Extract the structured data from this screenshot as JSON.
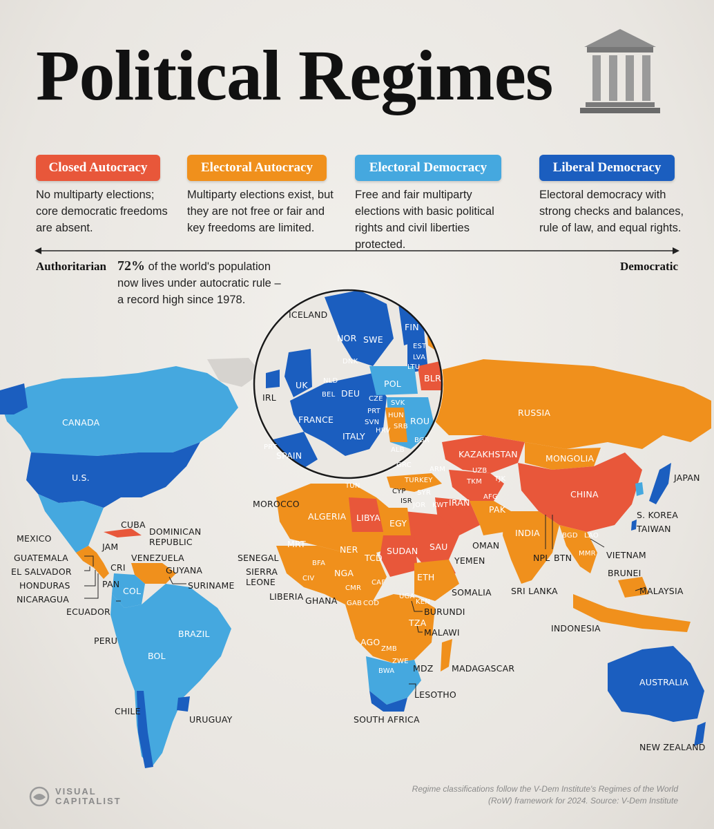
{
  "title": "Political Regimes",
  "colors": {
    "closed_autocracy": "#e8573a",
    "electoral_autocracy": "#f0901c",
    "electoral_democracy": "#45a8df",
    "liberal_democracy": "#1b5ebf",
    "no_data": "#d6d3cf"
  },
  "legend": [
    {
      "label": "Closed Autocracy",
      "desc": "No multiparty elections; core democratic freedoms are absent."
    },
    {
      "label": "Electoral Autocracy",
      "desc": "Multiparty elections exist, but they are not free or fair and key freedoms are limited."
    },
    {
      "label": "Electoral Democracy",
      "desc": "Free and fair multiparty elections with basic political rights and civil liberties protected."
    },
    {
      "label": "Liberal Democracy",
      "desc": "Electoral democracy with strong checks and balances, rule of law, and equal rights."
    }
  ],
  "scale": {
    "left": "Authoritarian",
    "right": "Democratic"
  },
  "stat": {
    "value": "72%",
    "text": " of the world's population now lives under autocratic rule – a record high since 1978."
  },
  "labels": {
    "canada": "CANADA",
    "us": "U.S.",
    "mexico": "MEXICO",
    "cuba": "CUBA",
    "jam": "JAM",
    "dominican": "DOMINICAN REPUBLIC",
    "guatemala": "GUATEMALA",
    "el_salvador": "EL SALVADOR",
    "honduras": "HONDURAS",
    "nicaragua": "NICARAGUA",
    "cri": "CRI",
    "pan": "PAN",
    "venezuela": "VENEZUELA",
    "guyana": "GUYANA",
    "suriname": "SURINAME",
    "col": "COL",
    "ecuador": "ECUADOR",
    "peru": "PERU",
    "brazil": "BRAZIL",
    "bol": "BOL",
    "chile": "CHILE",
    "uruguay": "URUGUAY",
    "iceland": "ICELAND",
    "nor": "NOR",
    "swe": "SWE",
    "fin": "FIN",
    "est": "EST",
    "lva": "LVA",
    "ltu": "LTU",
    "dnk": "DNK",
    "blr": "BLR",
    "irl": "IRL",
    "uk": "UK",
    "nld": "NLD",
    "bel": "BEL",
    "deu": "DEU",
    "pol": "POL",
    "cze": "CZE",
    "svk": "SVK",
    "france": "FRANCE",
    "prt_at": "PRT",
    "hun": "HUN",
    "rou": "ROU",
    "svn": "SVN",
    "hrv": "HRV",
    "srb": "SRB",
    "bgr": "BGR",
    "italy": "ITALY",
    "prt": "PRT",
    "spain": "SPAIN",
    "alb": "ALB",
    "grc": "GRC",
    "russia": "RUSSIA",
    "kazakhstan": "KAZAKHSTAN",
    "mongolia": "MONGOLIA",
    "china": "CHINA",
    "japan": "JAPAN",
    "s_korea": "S. KOREA",
    "taiwan": "TAIWAN",
    "morocco": "MOROCCO",
    "algeria": "ALGERIA",
    "tun": "TUN",
    "libya": "LIBYA",
    "egy": "EGY",
    "arm": "ARM",
    "turkey": "TURKEY",
    "uzb": "UZB",
    "tkm": "TKM",
    "tjk": "TJK",
    "cyp": "CYP",
    "isr": "ISR",
    "syr": "SYR",
    "jor": "JOR",
    "kwt": "KWT",
    "iran": "IRAN",
    "afg": "AFG",
    "pak": "PAK",
    "sau": "SAU",
    "oman": "OMAN",
    "yemen": "YEMEN",
    "india": "INDIA",
    "npl": "NPL",
    "btn": "BTN",
    "bgd": "BGD",
    "lao": "LAO",
    "mmr": "MMR",
    "vietnam": "VIETNAM",
    "brunei": "BRUNEI",
    "malaysia": "MALAYSIA",
    "sri_lanka": "SRI LANKA",
    "indonesia": "INDONESIA",
    "mrt": "MRT",
    "ner": "NER",
    "tcd": "TCD",
    "sudan": "SUDAN",
    "eth": "ETH",
    "nga": "NGA",
    "bfa": "BFA",
    "civ": "CIV",
    "cmr": "CMR",
    "caf": "CAF",
    "senegal": "SENEGAL",
    "sierra_leone": "SIERRA LEONE",
    "liberia": "LIBERIA",
    "ghana": "GHANA",
    "somalia": "SOMALIA",
    "uga": "UGA",
    "ken": "KEN",
    "gab": "GAB",
    "cod": "COD",
    "burundi": "BURUNDI",
    "tza": "TZA",
    "malawi": "MALAWI",
    "ago": "AGO",
    "zmb": "ZMB",
    "zwe": "ZWE",
    "bwa": "BWA",
    "mdz": "MDZ",
    "madagascar": "MADAGASCAR",
    "lesotho": "LESOTHO",
    "south_africa": "SOUTH AFRICA",
    "australia": "AUSTRALIA",
    "new_zealand": "NEW ZEALAND"
  },
  "source": "Regime classifications follow the V-Dem Institute's Regimes of the World (RoW) framework for 2024. Source: V-Dem Institute",
  "brand": {
    "line1": "VISUAL",
    "line2": "CAPITALIST"
  }
}
